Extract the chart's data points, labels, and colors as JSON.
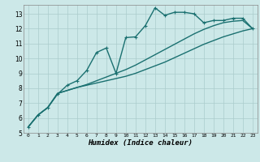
{
  "xlabel": "Humidex (Indice chaleur)",
  "xlim": [
    -0.5,
    23.5
  ],
  "ylim": [
    5,
    13.6
  ],
  "xticks": [
    0,
    1,
    2,
    3,
    4,
    5,
    6,
    7,
    8,
    9,
    10,
    11,
    12,
    13,
    14,
    15,
    16,
    17,
    18,
    19,
    20,
    21,
    22,
    23
  ],
  "yticks": [
    5,
    6,
    7,
    8,
    9,
    10,
    11,
    12,
    13
  ],
  "bg_color": "#cce8e8",
  "grid_color": "#aacccc",
  "line_color": "#1a7070",
  "line1_x": [
    0,
    1,
    2,
    3,
    4,
    5,
    6,
    7,
    8,
    9,
    10,
    11,
    12,
    13,
    14,
    15,
    16,
    17,
    18,
    19,
    20,
    21,
    22,
    23
  ],
  "line1_y": [
    5.4,
    6.2,
    6.7,
    7.65,
    7.85,
    8.05,
    8.2,
    8.35,
    8.5,
    8.65,
    8.8,
    9.0,
    9.25,
    9.5,
    9.75,
    10.05,
    10.35,
    10.65,
    10.95,
    11.2,
    11.45,
    11.65,
    11.85,
    12.0
  ],
  "line2_x": [
    0,
    1,
    2,
    3,
    4,
    5,
    6,
    7,
    8,
    9,
    10,
    11,
    12,
    13,
    14,
    15,
    16,
    17,
    18,
    19,
    20,
    21,
    22,
    23
  ],
  "line2_y": [
    5.4,
    6.2,
    6.7,
    7.65,
    7.85,
    8.05,
    8.25,
    8.5,
    8.75,
    9.0,
    9.25,
    9.55,
    9.9,
    10.25,
    10.6,
    10.95,
    11.3,
    11.65,
    11.95,
    12.2,
    12.4,
    12.5,
    12.55,
    12.0
  ],
  "line3_x": [
    0,
    1,
    2,
    3,
    4,
    5,
    6,
    7,
    8,
    9,
    10,
    11,
    12,
    13,
    14,
    15,
    16,
    17,
    18,
    19,
    20,
    21,
    22,
    23
  ],
  "line3_y": [
    5.4,
    6.2,
    6.7,
    7.6,
    8.2,
    8.5,
    9.2,
    10.4,
    10.7,
    9.0,
    11.4,
    11.45,
    12.2,
    13.4,
    12.9,
    13.1,
    13.1,
    13.0,
    12.4,
    12.55,
    12.55,
    12.7,
    12.7,
    12.0
  ],
  "linewidth": 1.0,
  "markersize": 3.5,
  "marker": "+"
}
